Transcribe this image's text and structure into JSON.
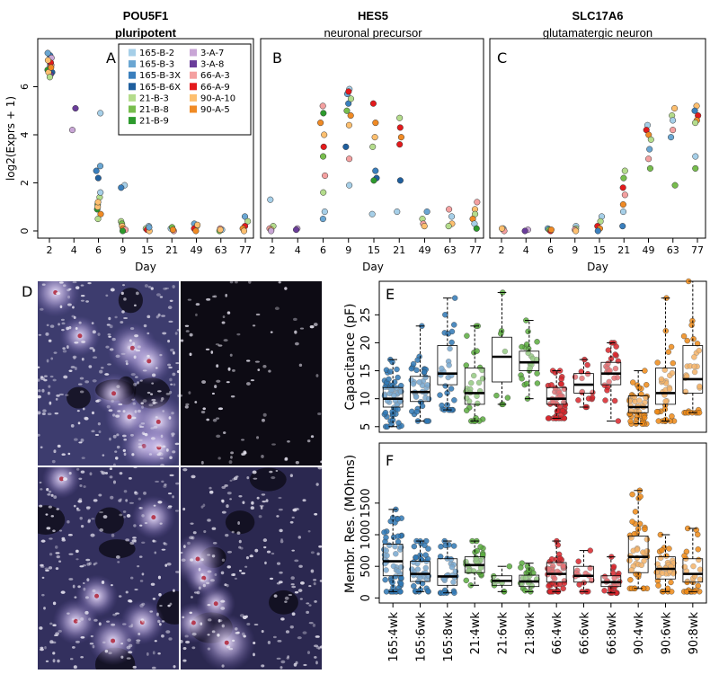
{
  "chart_data": [
    {
      "panel": "A",
      "type": "scatter",
      "title": "POU5F1",
      "subtitle": "pluripotent",
      "xlabel": "Day",
      "ylabel": "log2(Exprs + 1)",
      "x_categories": [
        "2",
        "4",
        "6",
        "9",
        "15",
        "21",
        "49",
        "63",
        "77"
      ],
      "yticks": [
        0,
        2,
        4,
        6
      ],
      "ylim": [
        -0.3,
        8.0
      ],
      "points": [
        [
          "165-B-2",
          "2",
          6.9
        ],
        [
          "165-B-3",
          "2",
          7.1
        ],
        [
          "165-B-3X",
          "2",
          7.3
        ],
        [
          "165-B-6X",
          "2",
          6.6
        ],
        [
          "21-B-3",
          "2",
          6.8
        ],
        [
          "21-B-8",
          "2",
          7.0
        ],
        [
          "21-B-9",
          "2",
          6.7
        ],
        [
          "3-A-7",
          "2",
          7.2
        ],
        [
          "3-A-8",
          "2",
          6.5
        ],
        [
          "66-A-3",
          "2",
          6.9
        ],
        [
          "66-A-9",
          "2",
          7.0
        ],
        [
          "90-A-10",
          "2",
          6.6
        ],
        [
          "90-A-5",
          "2",
          6.8
        ],
        [
          "165-B-3",
          "2",
          7.4
        ],
        [
          "21-B-3",
          "2",
          6.4
        ],
        [
          "90-A-10",
          "2",
          7.1
        ],
        [
          "3-A-7",
          "4",
          4.2
        ],
        [
          "3-A-8",
          "4",
          5.1
        ],
        [
          "165-B-2",
          "6",
          4.9
        ],
        [
          "165-B-3",
          "6",
          2.7
        ],
        [
          "165-B-3X",
          "6",
          2.5
        ],
        [
          "165-B-6X",
          "6",
          2.2
        ],
        [
          "21-B-3",
          "6",
          1.4
        ],
        [
          "21-B-8",
          "6",
          1.1
        ],
        [
          "21-B-9",
          "6",
          0.9
        ],
        [
          "90-A-10",
          "6",
          1.0
        ],
        [
          "90-A-5",
          "6",
          0.7
        ],
        [
          "165-B-2",
          "6",
          1.6
        ],
        [
          "21-B-3",
          "6",
          0.5
        ],
        [
          "90-A-10",
          "6",
          1.2
        ],
        [
          "165-B-2",
          "9",
          1.9
        ],
        [
          "165-B-3X",
          "9",
          1.8
        ],
        [
          "21-B-3",
          "9",
          0.4
        ],
        [
          "21-B-8",
          "9",
          0.3
        ],
        [
          "90-A-10",
          "9",
          0.2
        ],
        [
          "90-A-5",
          "9",
          0.1
        ],
        [
          "66-A-3",
          "9",
          0.05
        ],
        [
          "21-B-9",
          "9",
          0.0
        ],
        [
          "165-B-2",
          "15",
          0.2
        ],
        [
          "21-B-3",
          "15",
          0.1
        ],
        [
          "66-A-9",
          "15",
          0.05
        ],
        [
          "90-A-10",
          "15",
          0.0
        ],
        [
          "165-B-3",
          "15",
          0.15
        ],
        [
          "165-B-2",
          "21",
          0.1
        ],
        [
          "21-B-8",
          "21",
          0.15
        ],
        [
          "66-A-3",
          "21",
          0.0
        ],
        [
          "90-A-5",
          "21",
          0.05
        ],
        [
          "165-B-3",
          "49",
          0.3
        ],
        [
          "21-B-3",
          "49",
          0.2
        ],
        [
          "66-A-9",
          "49",
          0.1
        ],
        [
          "90-A-10",
          "49",
          0.25
        ],
        [
          "90-A-5",
          "49",
          0.0
        ],
        [
          "165-B-2",
          "63",
          0.05
        ],
        [
          "21-B-8",
          "63",
          0.0
        ],
        [
          "66-A-3",
          "63",
          0.1
        ],
        [
          "90-A-10",
          "63",
          0.05
        ],
        [
          "165-B-3",
          "77",
          0.6
        ],
        [
          "21-B-3",
          "77",
          0.4
        ],
        [
          "66-A-9",
          "77",
          0.2
        ],
        [
          "90-A-5",
          "77",
          0.1
        ],
        [
          "90-A-10",
          "77",
          0.0
        ]
      ]
    },
    {
      "panel": "B",
      "type": "scatter",
      "title": "HES5",
      "subtitle": "neuronal precursor",
      "xlabel": "Day",
      "x_categories": [
        "2",
        "4",
        "6",
        "9",
        "15",
        "21",
        "49",
        "63",
        "77"
      ],
      "ylim": [
        -0.3,
        8.0
      ],
      "points": [
        [
          "165-B-2",
          "2",
          1.3
        ],
        [
          "21-B-3",
          "2",
          0.2
        ],
        [
          "66-A-3",
          "2",
          0.1
        ],
        [
          "90-A-10",
          "2",
          0.05
        ],
        [
          "3-A-7",
          "2",
          0.0
        ],
        [
          "3-A-7",
          "4",
          0.1
        ],
        [
          "3-A-8",
          "4",
          0.05
        ],
        [
          "165-B-2",
          "6",
          0.8
        ],
        [
          "165-B-3",
          "6",
          0.5
        ],
        [
          "21-B-3",
          "6",
          1.6
        ],
        [
          "66-A-3",
          "6",
          2.3
        ],
        [
          "66-A-9",
          "6",
          3.5
        ],
        [
          "90-A-10",
          "6",
          4.0
        ],
        [
          "90-A-5",
          "6",
          4.5
        ],
        [
          "21-B-9",
          "6",
          4.9
        ],
        [
          "66-A-3",
          "6",
          5.2
        ],
        [
          "21-B-8",
          "6",
          3.1
        ],
        [
          "165-B-2",
          "9",
          5.9
        ],
        [
          "165-B-3",
          "9",
          5.7
        ],
        [
          "165-B-3X",
          "9",
          5.3
        ],
        [
          "21-B-3",
          "9",
          5.5
        ],
        [
          "21-B-8",
          "9",
          5.0
        ],
        [
          "66-A-9",
          "9",
          5.8
        ],
        [
          "90-A-5",
          "9",
          4.8
        ],
        [
          "90-A-10",
          "9",
          4.4
        ],
        [
          "165-B-6X",
          "9",
          3.5
        ],
        [
          "66-A-3",
          "9",
          3.0
        ],
        [
          "165-B-2",
          "9",
          1.9
        ],
        [
          "66-A-9",
          "15",
          5.3
        ],
        [
          "90-A-5",
          "15",
          4.5
        ],
        [
          "90-A-10",
          "15",
          3.9
        ],
        [
          "21-B-3",
          "15",
          3.5
        ],
        [
          "165-B-3X",
          "15",
          2.5
        ],
        [
          "165-B-6X",
          "15",
          2.2
        ],
        [
          "21-B-9",
          "15",
          2.1
        ],
        [
          "165-B-2",
          "15",
          0.7
        ],
        [
          "21-B-3",
          "21",
          4.7
        ],
        [
          "66-A-9",
          "21",
          4.3
        ],
        [
          "90-A-5",
          "21",
          3.9
        ],
        [
          "66-A-9",
          "21",
          3.6
        ],
        [
          "165-B-6X",
          "21",
          2.1
        ],
        [
          "165-B-2",
          "21",
          0.8
        ],
        [
          "165-B-3",
          "49",
          0.8
        ],
        [
          "21-B-3",
          "49",
          0.5
        ],
        [
          "66-A-3",
          "49",
          0.3
        ],
        [
          "90-A-10",
          "49",
          0.2
        ],
        [
          "165-B-2",
          "63",
          0.6
        ],
        [
          "66-A-3",
          "63",
          0.9
        ],
        [
          "90-A-10",
          "63",
          0.3
        ],
        [
          "21-B-3",
          "63",
          0.2
        ],
        [
          "66-A-3",
          "77",
          1.2
        ],
        [
          "90-A-10",
          "77",
          0.9
        ],
        [
          "21-B-3",
          "77",
          0.7
        ],
        [
          "90-A-5",
          "77",
          0.5
        ],
        [
          "165-B-2",
          "77",
          0.3
        ],
        [
          "21-B-9",
          "77",
          0.1
        ]
      ]
    },
    {
      "panel": "C",
      "type": "scatter",
      "title": "SLC17A6",
      "subtitle": "glutamatergic neuron",
      "xlabel": "Day",
      "x_categories": [
        "2",
        "4",
        "6",
        "9",
        "15",
        "21",
        "49",
        "63",
        "77"
      ],
      "ylim": [
        -0.3,
        8.0
      ],
      "points": [
        [
          "165-B-2",
          "2",
          0.1
        ],
        [
          "21-B-3",
          "2",
          0.05
        ],
        [
          "66-A-3",
          "2",
          0.0
        ],
        [
          "90-A-10",
          "2",
          0.1
        ],
        [
          "3-A-7",
          "4",
          0.05
        ],
        [
          "3-A-8",
          "4",
          0.0
        ],
        [
          "165-B-3",
          "6",
          0.1
        ],
        [
          "21-B-8",
          "6",
          0.05
        ],
        [
          "66-A-9",
          "6",
          0.0
        ],
        [
          "90-A-5",
          "6",
          0.05
        ],
        [
          "165-B-2",
          "9",
          0.2
        ],
        [
          "21-B-3",
          "9",
          0.1
        ],
        [
          "66-A-3",
          "9",
          0.05
        ],
        [
          "90-A-10",
          "9",
          0.0
        ],
        [
          "165-B-2",
          "15",
          0.6
        ],
        [
          "21-B-3",
          "15",
          0.4
        ],
        [
          "66-A-9",
          "15",
          0.2
        ],
        [
          "90-A-5",
          "15",
          0.1
        ],
        [
          "165-B-3X",
          "15",
          0.0
        ],
        [
          "21-B-3",
          "21",
          2.5
        ],
        [
          "21-B-8",
          "21",
          2.2
        ],
        [
          "66-A-9",
          "21",
          1.8
        ],
        [
          "66-A-3",
          "21",
          1.5
        ],
        [
          "90-A-5",
          "21",
          1.1
        ],
        [
          "165-B-2",
          "21",
          0.8
        ],
        [
          "165-B-3X",
          "21",
          0.2
        ],
        [
          "165-B-2",
          "49",
          4.4
        ],
        [
          "66-A-9",
          "49",
          4.2
        ],
        [
          "90-A-5",
          "49",
          4.0
        ],
        [
          "21-B-3",
          "49",
          3.8
        ],
        [
          "165-B-3",
          "49",
          3.4
        ],
        [
          "66-A-3",
          "49",
          3.0
        ],
        [
          "21-B-8",
          "49",
          2.6
        ],
        [
          "90-A-10",
          "63",
          5.1
        ],
        [
          "21-B-3",
          "63",
          4.8
        ],
        [
          "165-B-2",
          "63",
          4.6
        ],
        [
          "66-A-3",
          "63",
          4.2
        ],
        [
          "165-B-3",
          "63",
          3.9
        ],
        [
          "21-B-8",
          "63",
          1.9
        ],
        [
          "90-A-10",
          "77",
          5.2
        ],
        [
          "165-B-3X",
          "77",
          5.0
        ],
        [
          "66-A-9",
          "77",
          4.8
        ],
        [
          "90-A-5",
          "77",
          4.6
        ],
        [
          "21-B-3",
          "77",
          4.5
        ],
        [
          "165-B-2",
          "77",
          3.1
        ],
        [
          "21-B-8",
          "77",
          2.6
        ]
      ]
    },
    {
      "panel": "E",
      "type": "boxplot",
      "ylabel": "Capacitance (pF)",
      "yticks": [
        5,
        10,
        15,
        20,
        25
      ],
      "ylim": [
        4.0,
        31.0
      ],
      "categories": [
        "165:4wk",
        "165:6wk",
        "165:8wk",
        "21:4wk",
        "21:6wk",
        "21:8wk",
        "66:4wk",
        "66:6wk",
        "66:8wk",
        "90:4wk",
        "90:6wk",
        "90:8wk"
      ],
      "boxes": [
        {
          "min": 5.0,
          "q1": 8.5,
          "median": 10.0,
          "q3": 12.0,
          "max": 17.0
        },
        {
          "min": 6.0,
          "q1": 9.5,
          "median": 11.2,
          "q3": 14.0,
          "max": 23.0
        },
        {
          "min": 8.0,
          "q1": 12.5,
          "median": 14.5,
          "q3": 19.5,
          "max": 28.0
        },
        {
          "min": 6.0,
          "q1": 9.0,
          "median": 11.0,
          "q3": 15.5,
          "max": 23.0
        },
        {
          "min": 9.0,
          "q1": 13.0,
          "median": 17.5,
          "q3": 21.0,
          "max": 29.0
        },
        {
          "min": 10.0,
          "q1": 15.0,
          "median": 16.5,
          "q3": 18.5,
          "max": 24.0
        },
        {
          "min": 6.5,
          "q1": 9.0,
          "median": 10.0,
          "q3": 12.0,
          "max": 15.0
        },
        {
          "min": 8.5,
          "q1": 11.0,
          "median": 12.5,
          "q3": 14.5,
          "max": 17.0
        },
        {
          "min": 6.0,
          "q1": 12.5,
          "median": 14.5,
          "q3": 16.5,
          "max": 20.0
        },
        {
          "min": 5.5,
          "q1": 7.5,
          "median": 8.5,
          "q3": 10.5,
          "max": 15.0
        },
        {
          "min": 6.0,
          "q1": 9.0,
          "median": 11.0,
          "q3": 15.5,
          "max": 28.0
        },
        {
          "min": 7.5,
          "q1": 11.0,
          "median": 13.5,
          "q3": 19.5,
          "max": 31.0
        }
      ],
      "point_counts": [
        55,
        40,
        30,
        30,
        8,
        22,
        45,
        15,
        25,
        45,
        35,
        30
      ],
      "box_colors": [
        "#2f78b5",
        "#2f78b5",
        "#2f78b5",
        "#5bab3e",
        "#5bab3e",
        "#5bab3e",
        "#d8252a",
        "#d8252a",
        "#d8252a",
        "#ef8a16",
        "#ef8a16",
        "#ef8a16"
      ]
    },
    {
      "panel": "F",
      "type": "boxplot",
      "ylabel": "Membr. Res. (MOhms)",
      "yticks": [
        0,
        500,
        1000,
        1500
      ],
      "ylim": [
        -80,
        2450
      ],
      "categories": [
        "165:4wk",
        "165:6wk",
        "165:8wk",
        "21:4wk",
        "21:6wk",
        "21:8wk",
        "66:4wk",
        "66:6wk",
        "66:8wk",
        "90:4wk",
        "90:6wk",
        "90:8wk"
      ],
      "boxes": [
        {
          "min": 100,
          "q1": 350,
          "median": 580,
          "q3": 850,
          "max": 1400
        },
        {
          "min": 100,
          "q1": 260,
          "median": 380,
          "q3": 580,
          "max": 900
        },
        {
          "min": 80,
          "q1": 200,
          "median": 340,
          "q3": 620,
          "max": 900
        },
        {
          "min": 200,
          "q1": 400,
          "median": 520,
          "q3": 650,
          "max": 900
        },
        {
          "min": 100,
          "q1": 200,
          "median": 270,
          "q3": 350,
          "max": 500
        },
        {
          "min": 100,
          "q1": 180,
          "median": 260,
          "q3": 360,
          "max": 550
        },
        {
          "min": 100,
          "q1": 250,
          "median": 380,
          "q3": 560,
          "max": 900
        },
        {
          "min": 100,
          "q1": 250,
          "median": 350,
          "q3": 500,
          "max": 750
        },
        {
          "min": 80,
          "q1": 180,
          "median": 250,
          "q3": 350,
          "max": 650
        },
        {
          "min": 150,
          "q1": 400,
          "median": 650,
          "q3": 980,
          "max": 1700
        },
        {
          "min": 100,
          "q1": 300,
          "median": 460,
          "q3": 650,
          "max": 1000
        },
        {
          "min": 100,
          "q1": 250,
          "median": 380,
          "q3": 620,
          "max": 1100
        }
      ],
      "point_counts": [
        55,
        40,
        30,
        30,
        8,
        22,
        45,
        15,
        25,
        45,
        35,
        30
      ],
      "box_colors": [
        "#2f78b5",
        "#2f78b5",
        "#2f78b5",
        "#5bab3e",
        "#5bab3e",
        "#5bab3e",
        "#d8252a",
        "#d8252a",
        "#d8252a",
        "#ef8a16",
        "#ef8a16",
        "#ef8a16"
      ]
    }
  ],
  "legend": [
    {
      "name": "165-B-2",
      "color": "#a6cfe8"
    },
    {
      "name": "165-B-3",
      "color": "#6aa6d2"
    },
    {
      "name": "165-B-3X",
      "color": "#3a7fbd"
    },
    {
      "name": "165-B-6X",
      "color": "#1f5f9e"
    },
    {
      "name": "21-B-3",
      "color": "#b4dc8c"
    },
    {
      "name": "21-B-8",
      "color": "#77bd4d"
    },
    {
      "name": "21-B-9",
      "color": "#2d9a2d"
    },
    {
      "name": "3-A-7",
      "color": "#c9a6d6"
    },
    {
      "name": "3-A-8",
      "color": "#6a3d9a"
    },
    {
      "name": "66-A-3",
      "color": "#f4a0a0"
    },
    {
      "name": "66-A-9",
      "color": "#e31a1c"
    },
    {
      "name": "90-A-10",
      "color": "#fdbf6f"
    },
    {
      "name": "90-A-5",
      "color": "#f08a24"
    }
  ],
  "microscopy": {
    "panel": "D",
    "colors": {
      "background": "#3d3c6e",
      "dark": "#0d0b14",
      "nuclei": "#e9e6f2",
      "rosette": "#b02c40"
    }
  },
  "panel_labels": {
    "A": "A",
    "B": "B",
    "C": "C",
    "D": "D",
    "E": "E",
    "F": "F"
  }
}
